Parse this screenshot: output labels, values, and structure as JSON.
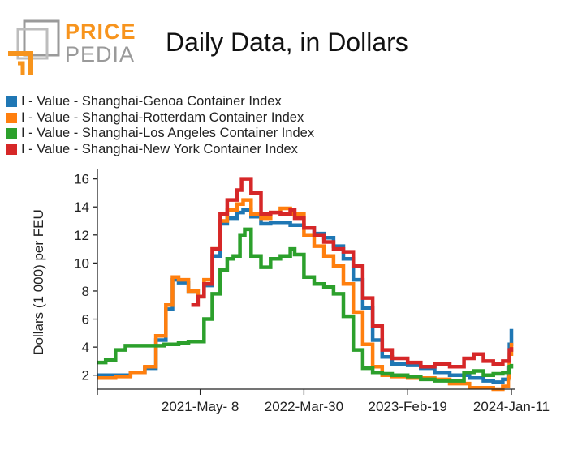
{
  "brand": {
    "word1": "PRICE",
    "word2": "PEDIA"
  },
  "chart_data": {
    "type": "line",
    "title": "Daily Data, in Dollars",
    "xlabel": "",
    "ylabel": "Dollars (1 000) per FEU",
    "x_ticks": [
      "2021-May- 8",
      "2022-Mar-30",
      "2023-Feb-19",
      "2024-Jan-11"
    ],
    "xlim": [
      "2020-06-19",
      "2024-01-11"
    ],
    "ylim": [
      1,
      16.5
    ],
    "y_ticks": [
      2,
      4,
      6,
      8,
      10,
      12,
      14,
      16
    ],
    "grid": false,
    "legend_position": "top-left",
    "series": [
      {
        "name": "I - Value - Shanghai-Genoa Container Index",
        "color": "#1f77b4",
        "points": [
          [
            "2020-06-19",
            2.0
          ],
          [
            "2020-08-15",
            2.0
          ],
          [
            "2020-10-01",
            2.2
          ],
          [
            "2020-11-15",
            2.5
          ],
          [
            "2020-12-20",
            4.5
          ],
          [
            "2021-01-20",
            6.7
          ],
          [
            "2021-02-10",
            8.8
          ],
          [
            "2021-03-01",
            8.6
          ],
          [
            "2021-04-01",
            8.0
          ],
          [
            "2021-05-01",
            7.6
          ],
          [
            "2021-05-20",
            8.4
          ],
          [
            "2021-06-15",
            10.5
          ],
          [
            "2021-07-10",
            12.8
          ],
          [
            "2021-08-01",
            13.2
          ],
          [
            "2021-09-01",
            13.6
          ],
          [
            "2021-09-20",
            13.8
          ],
          [
            "2021-10-15",
            13.3
          ],
          [
            "2021-11-15",
            12.8
          ],
          [
            "2021-12-15",
            12.9
          ],
          [
            "2022-01-15",
            12.9
          ],
          [
            "2022-02-15",
            12.7
          ],
          [
            "2022-03-30",
            12.5
          ],
          [
            "2022-05-01",
            12.1
          ],
          [
            "2022-06-01",
            11.8
          ],
          [
            "2022-07-01",
            11.2
          ],
          [
            "2022-08-01",
            10.3
          ],
          [
            "2022-09-01",
            8.8
          ],
          [
            "2022-10-01",
            6.8
          ],
          [
            "2022-11-01",
            4.5
          ],
          [
            "2022-12-01",
            3.3
          ],
          [
            "2023-01-01",
            2.8
          ],
          [
            "2023-02-19",
            2.7
          ],
          [
            "2023-04-01",
            2.5
          ],
          [
            "2023-05-15",
            2.2
          ],
          [
            "2023-07-01",
            2.0
          ],
          [
            "2023-09-01",
            1.8
          ],
          [
            "2023-10-15",
            1.6
          ],
          [
            "2023-11-15",
            1.5
          ],
          [
            "2023-12-15",
            1.7
          ],
          [
            "2024-01-01",
            2.5
          ],
          [
            "2024-01-05",
            4.2
          ],
          [
            "2024-01-11",
            5.3
          ]
        ]
      },
      {
        "name": "I - Value - Shanghai-Rotterdam Container Index",
        "color": "#ff7f0e",
        "points": [
          [
            "2020-06-19",
            1.8
          ],
          [
            "2020-08-15",
            1.9
          ],
          [
            "2020-10-01",
            2.2
          ],
          [
            "2020-11-15",
            2.6
          ],
          [
            "2020-12-20",
            4.8
          ],
          [
            "2021-01-20",
            7.0
          ],
          [
            "2021-02-10",
            9.0
          ],
          [
            "2021-03-01",
            8.8
          ],
          [
            "2021-04-01",
            8.0
          ],
          [
            "2021-05-01",
            7.6
          ],
          [
            "2021-05-20",
            8.8
          ],
          [
            "2021-06-15",
            11.0
          ],
          [
            "2021-07-10",
            13.0
          ],
          [
            "2021-08-01",
            13.8
          ],
          [
            "2021-09-01",
            14.2
          ],
          [
            "2021-09-20",
            14.5
          ],
          [
            "2021-10-15",
            13.5
          ],
          [
            "2021-11-15",
            13.2
          ],
          [
            "2021-12-15",
            13.6
          ],
          [
            "2022-01-15",
            13.9
          ],
          [
            "2022-02-15",
            13.5
          ],
          [
            "2022-03-30",
            12.0
          ],
          [
            "2022-05-01",
            11.2
          ],
          [
            "2022-06-01",
            10.5
          ],
          [
            "2022-07-01",
            9.8
          ],
          [
            "2022-08-01",
            8.5
          ],
          [
            "2022-09-01",
            6.5
          ],
          [
            "2022-10-01",
            4.2
          ],
          [
            "2022-11-01",
            2.6
          ],
          [
            "2022-12-01",
            2.0
          ],
          [
            "2023-01-01",
            1.9
          ],
          [
            "2023-02-19",
            1.8
          ],
          [
            "2023-04-01",
            1.8
          ],
          [
            "2023-05-15",
            1.7
          ],
          [
            "2023-07-01",
            1.4
          ],
          [
            "2023-09-01",
            1.1
          ],
          [
            "2023-10-15",
            1.1
          ],
          [
            "2023-11-15",
            1.0
          ],
          [
            "2023-12-15",
            1.2
          ],
          [
            "2024-01-01",
            1.8
          ],
          [
            "2024-01-05",
            3.5
          ],
          [
            "2024-01-11",
            4.3
          ]
        ]
      },
      {
        "name": "I - Value - Shanghai-Los Angeles Container Index",
        "color": "#2ca02c",
        "points": [
          [
            "2020-06-19",
            2.9
          ],
          [
            "2020-07-15",
            3.1
          ],
          [
            "2020-08-15",
            3.8
          ],
          [
            "2020-09-15",
            4.1
          ],
          [
            "2020-11-15",
            4.1
          ],
          [
            "2021-01-15",
            4.2
          ],
          [
            "2021-03-01",
            4.3
          ],
          [
            "2021-04-01",
            4.4
          ],
          [
            "2021-05-01",
            4.4
          ],
          [
            "2021-05-20",
            6.0
          ],
          [
            "2021-06-15",
            7.8
          ],
          [
            "2021-07-10",
            9.5
          ],
          [
            "2021-08-01",
            10.3
          ],
          [
            "2021-08-20",
            10.5
          ],
          [
            "2021-09-10",
            12.0
          ],
          [
            "2021-09-25",
            12.4
          ],
          [
            "2021-10-15",
            10.5
          ],
          [
            "2021-11-15",
            9.7
          ],
          [
            "2021-12-15",
            10.3
          ],
          [
            "2022-01-15",
            10.5
          ],
          [
            "2022-02-15",
            11.0
          ],
          [
            "2022-03-01",
            10.6
          ],
          [
            "2022-03-30",
            9.0
          ],
          [
            "2022-05-01",
            8.5
          ],
          [
            "2022-06-01",
            8.3
          ],
          [
            "2022-07-01",
            7.8
          ],
          [
            "2022-08-01",
            6.2
          ],
          [
            "2022-09-01",
            3.8
          ],
          [
            "2022-10-01",
            2.5
          ],
          [
            "2022-11-01",
            2.2
          ],
          [
            "2022-12-01",
            2.1
          ],
          [
            "2023-01-01",
            2.0
          ],
          [
            "2023-02-19",
            1.9
          ],
          [
            "2023-04-01",
            1.7
          ],
          [
            "2023-05-15",
            1.6
          ],
          [
            "2023-07-01",
            1.6
          ],
          [
            "2023-08-15",
            2.2
          ],
          [
            "2023-09-15",
            2.3
          ],
          [
            "2023-10-15",
            2.0
          ],
          [
            "2023-11-15",
            2.1
          ],
          [
            "2023-12-15",
            2.2
          ],
          [
            "2024-01-05",
            2.6
          ],
          [
            "2024-01-11",
            2.8
          ]
        ]
      },
      {
        "name": "I - Value - Shanghai-New York Container Index",
        "color": "#d62728",
        "points": [
          [
            "2021-04-10",
            7.0
          ],
          [
            "2021-05-01",
            7.6
          ],
          [
            "2021-05-20",
            8.5
          ],
          [
            "2021-06-15",
            11.0
          ],
          [
            "2021-07-10",
            13.5
          ],
          [
            "2021-08-01",
            14.5
          ],
          [
            "2021-09-01",
            15.2
          ],
          [
            "2021-09-15",
            16.0
          ],
          [
            "2021-10-15",
            15.0
          ],
          [
            "2021-11-15",
            13.5
          ],
          [
            "2021-12-15",
            13.6
          ],
          [
            "2022-01-15",
            13.5
          ],
          [
            "2022-02-15",
            13.8
          ],
          [
            "2022-03-01",
            13.2
          ],
          [
            "2022-03-30",
            12.5
          ],
          [
            "2022-05-01",
            12.0
          ],
          [
            "2022-06-01",
            11.5
          ],
          [
            "2022-07-01",
            11.0
          ],
          [
            "2022-08-01",
            10.8
          ],
          [
            "2022-09-01",
            9.8
          ],
          [
            "2022-10-01",
            7.5
          ],
          [
            "2022-11-01",
            5.5
          ],
          [
            "2022-12-01",
            3.8
          ],
          [
            "2023-01-01",
            3.2
          ],
          [
            "2023-02-19",
            2.9
          ],
          [
            "2023-04-01",
            2.6
          ],
          [
            "2023-05-15",
            2.8
          ],
          [
            "2023-07-01",
            2.6
          ],
          [
            "2023-08-15",
            3.2
          ],
          [
            "2023-09-15",
            3.5
          ],
          [
            "2023-10-15",
            3.0
          ],
          [
            "2023-11-15",
            2.8
          ],
          [
            "2023-12-15",
            3.0
          ],
          [
            "2024-01-05",
            3.8
          ],
          [
            "2024-01-11",
            4.0
          ]
        ]
      }
    ]
  }
}
